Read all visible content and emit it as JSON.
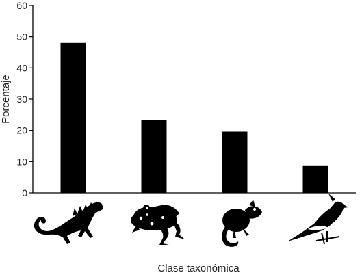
{
  "chart_data": {
    "type": "bar",
    "categories": [
      "reptile",
      "amphibian",
      "mammal",
      "bird"
    ],
    "category_icons": [
      "iguana-icon",
      "frog-icon",
      "opossum-icon",
      "bird-icon"
    ],
    "values": [
      48,
      23.3,
      19.6,
      8.8
    ],
    "title": "",
    "xlabel": "Clase taxonómica",
    "ylabel": "Porcentaje",
    "ylim": [
      0,
      60
    ],
    "yticks": [
      "0",
      "10",
      "20",
      "30",
      "40",
      "50",
      "60"
    ],
    "grid": false,
    "legend": "none",
    "bar_color": "#000000"
  }
}
